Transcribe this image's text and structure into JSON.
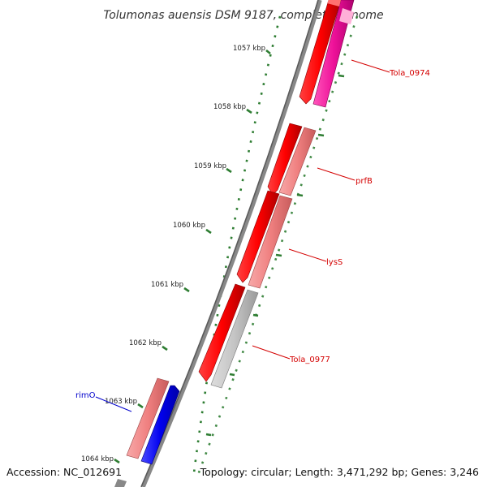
{
  "title": "Tolumonas auensis DSM 9187, complete genome",
  "footer": {
    "accession": "Accession: NC_012691",
    "stats": "Topology: circular; Length: 3,471,292 bp; Genes: 3,246"
  },
  "ticks": [
    "1057 kbp",
    "1058 kbp",
    "1059 kbp",
    "1060 kbp",
    "1061 kbp",
    "1062 kbp",
    "1063 kbp",
    "1064 kbp"
  ],
  "gene_labels": [
    {
      "text": "Tola_0974",
      "color": "#d40000"
    },
    {
      "text": "prfB",
      "color": "#d40000"
    },
    {
      "text": "lysS",
      "color": "#d40000"
    },
    {
      "text": "Tola_0977",
      "color": "#d40000"
    },
    {
      "text": "rimO",
      "color": "#0000cc"
    }
  ],
  "colors": {
    "cds_red": "#ff0000",
    "gene_pink": "#f08080",
    "magenta": "#ee1199",
    "blue": "#0000ee",
    "gray": "#bdbdbd",
    "backbone": "#777777",
    "tick_green": "#2e7d32"
  }
}
